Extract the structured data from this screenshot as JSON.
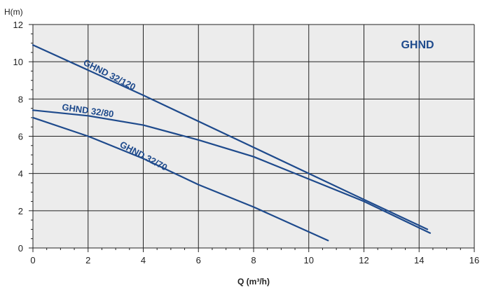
{
  "chart_data": {
    "type": "line",
    "title": "GHND",
    "xlabel": "Q (m³/h)",
    "ylabel": "H(m)",
    "xlim": [
      0,
      16
    ],
    "ylim": [
      0,
      12
    ],
    "xticks": [
      0,
      2,
      4,
      6,
      8,
      10,
      12,
      14,
      16
    ],
    "yticks": [
      0,
      2,
      4,
      6,
      8,
      10,
      12
    ],
    "grid": true,
    "legend": "inline-labels",
    "colors": {
      "series": "#1e4a8c",
      "plot_background": "#ececec",
      "grid": "#222222",
      "title": "#1e4a8c"
    },
    "series": [
      {
        "name": "GHND 32/120",
        "x": [
          0,
          4,
          8,
          12,
          14.3
        ],
        "y": [
          10.9,
          8.2,
          5.4,
          2.6,
          1.0
        ]
      },
      {
        "name": "GHND 32/80",
        "x": [
          0,
          2,
          4,
          6,
          8,
          10,
          12,
          14.4
        ],
        "y": [
          7.4,
          7.1,
          6.6,
          5.8,
          4.9,
          3.7,
          2.5,
          0.8
        ]
      },
      {
        "name": "GHND 32/70",
        "x": [
          0,
          2,
          4,
          6,
          8,
          10.7
        ],
        "y": [
          7.0,
          6.0,
          4.8,
          3.4,
          2.2,
          0.4
        ]
      }
    ]
  }
}
